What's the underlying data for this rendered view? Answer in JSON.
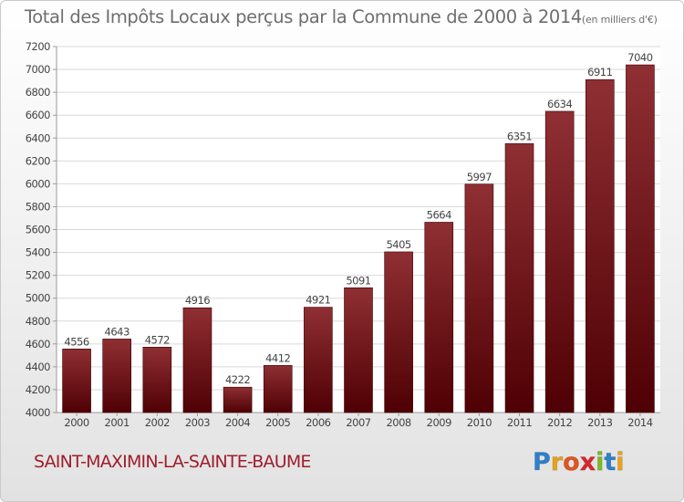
{
  "chart_data": {
    "type": "bar",
    "title": "Total des Impôts Locaux perçus par la Commune de 2000 à 2014",
    "unit_label": "(en milliers d'€)",
    "categories": [
      "2000",
      "2001",
      "2002",
      "2003",
      "2004",
      "2005",
      "2006",
      "2007",
      "2008",
      "2009",
      "2010",
      "2011",
      "2012",
      "2013",
      "2014"
    ],
    "values": [
      4556,
      4643,
      4572,
      4916,
      4222,
      4412,
      4921,
      5091,
      5405,
      5664,
      5997,
      6351,
      6634,
      6911,
      7040
    ],
    "ylim": [
      4000,
      7200
    ],
    "yticks": [
      4000,
      4200,
      4400,
      4600,
      4800,
      5000,
      5200,
      5400,
      5600,
      5800,
      6000,
      6200,
      6400,
      6600,
      6800,
      7000,
      7200
    ],
    "xlabel": "",
    "ylabel": "",
    "grid": true,
    "bar_color_top": "#8f2f33",
    "bar_color_bottom": "#4f0004"
  },
  "commune": {
    "name": "SAINT-MAXIMIN-LA-SAINTE-BAUME",
    "color": "#a01d2c"
  },
  "brand": {
    "name": "Proxiti",
    "letters": [
      {
        "char": "P",
        "color": "#2f80c8"
      },
      {
        "char": "r",
        "color": "#e9a21a"
      },
      {
        "char": "o",
        "color": "#e2551e"
      },
      {
        "char": "x",
        "color": "#d9262b"
      },
      {
        "char": "i",
        "color": "#7cb928"
      },
      {
        "char": "t",
        "color": "#2f80c8"
      },
      {
        "char": "i",
        "color": "#e9a21a"
      }
    ]
  }
}
